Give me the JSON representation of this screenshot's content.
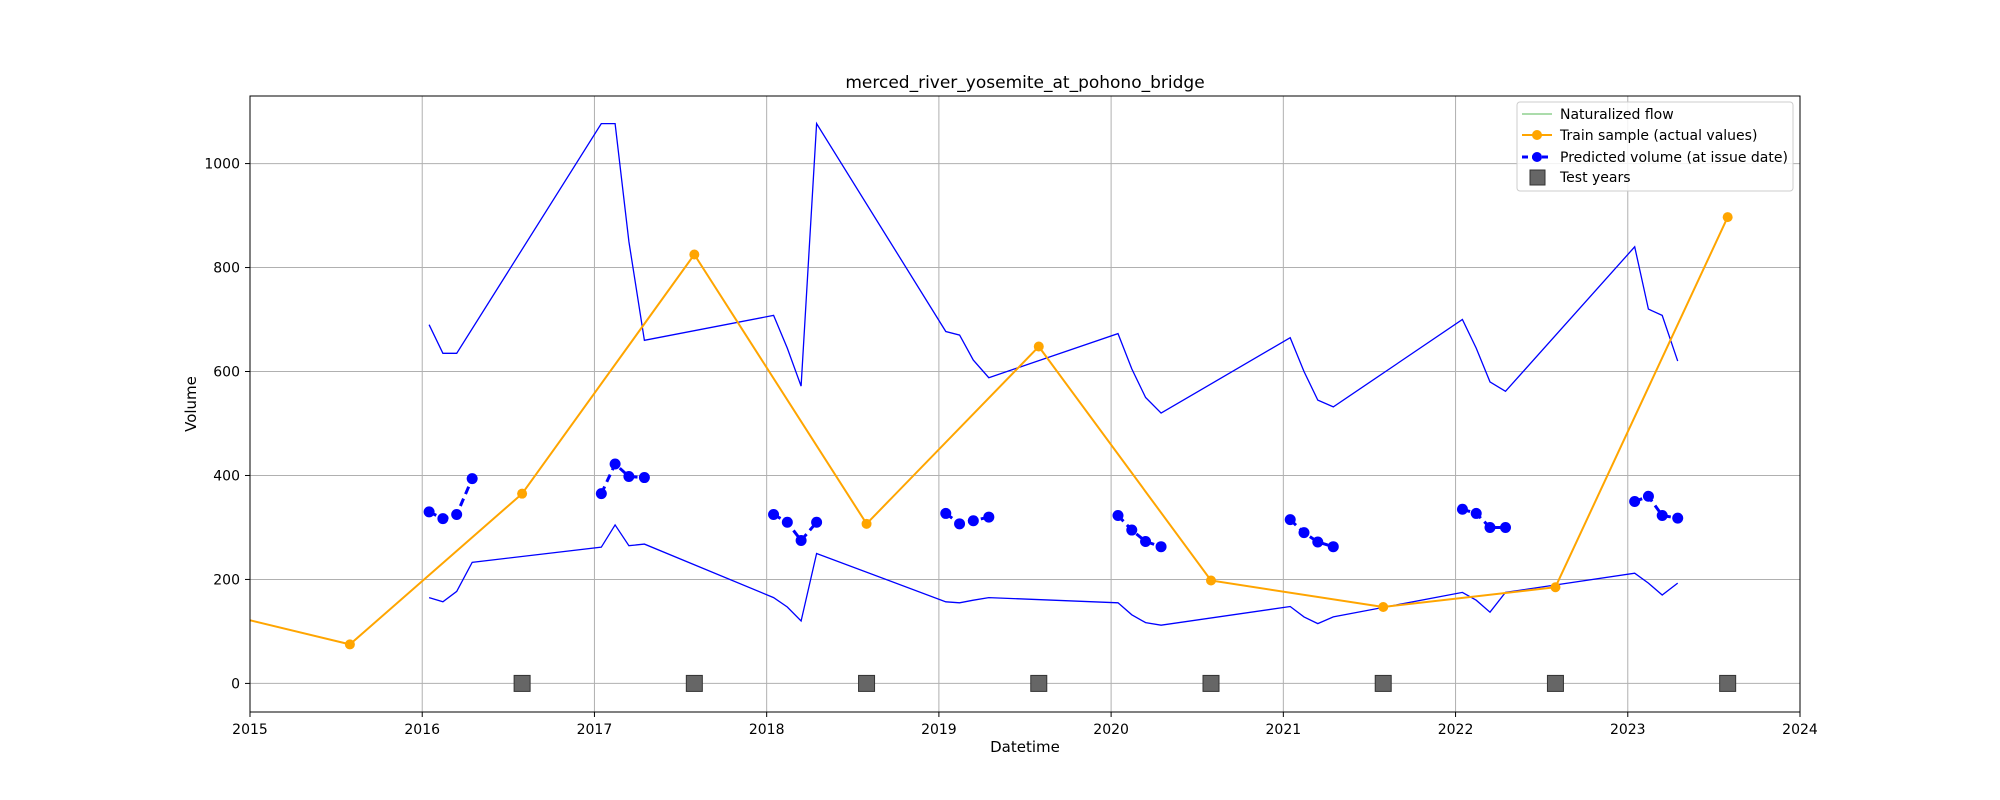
{
  "chart_data": {
    "type": "line",
    "title": "merced_river_yosemite_at_pohono_bridge",
    "xlabel": "Datetime",
    "ylabel": "Volume",
    "xlim": [
      2015,
      2024
    ],
    "ylim": [
      -55,
      1130
    ],
    "x_ticks": [
      2015,
      2016,
      2017,
      2018,
      2019,
      2020,
      2021,
      2022,
      2023,
      2024
    ],
    "y_ticks": [
      0,
      200,
      400,
      600,
      800,
      1000
    ],
    "grid": true,
    "legend_position": "top-right",
    "legend": [
      "Naturalized flow",
      "Train sample (actual values)",
      "Predicted volume (at issue date)",
      "Test years"
    ],
    "colors": {
      "naturalized": "#8fd18f",
      "train": "#ffa500",
      "predicted": "#0000ff",
      "test_years": "#666666"
    },
    "train_sample": {
      "x": [
        2014.58,
        2015.58,
        2016.58,
        2017.58,
        2018.58,
        2019.58,
        2020.58,
        2021.58,
        2022.58,
        2023.58
      ],
      "y": [
        155,
        75,
        365,
        825,
        307,
        648,
        198,
        147,
        185,
        897
      ]
    },
    "predicted_volume": {
      "segments": [
        {
          "x": [
            2016.04,
            2016.12,
            2016.2,
            2016.29
          ],
          "y": [
            330,
            317,
            325,
            394
          ]
        },
        {
          "x": [
            2017.04,
            2017.12,
            2017.2,
            2017.29
          ],
          "y": [
            365,
            422,
            398,
            396
          ]
        },
        {
          "x": [
            2018.04,
            2018.12,
            2018.2,
            2018.29
          ],
          "y": [
            325,
            310,
            275,
            310
          ]
        },
        {
          "x": [
            2019.04,
            2019.12,
            2019.2,
            2019.29
          ],
          "y": [
            327,
            307,
            313,
            320
          ]
        },
        {
          "x": [
            2020.04,
            2020.12,
            2020.2,
            2020.29
          ],
          "y": [
            323,
            295,
            273,
            263
          ]
        },
        {
          "x": [
            2021.04,
            2021.12,
            2021.2,
            2021.29
          ],
          "y": [
            315,
            290,
            272,
            263
          ]
        },
        {
          "x": [
            2022.04,
            2022.12,
            2022.2,
            2022.29
          ],
          "y": [
            335,
            327,
            300,
            300
          ]
        },
        {
          "x": [
            2023.04,
            2023.12,
            2023.2,
            2023.29
          ],
          "y": [
            350,
            360,
            323,
            318
          ]
        }
      ]
    },
    "upper_bound": {
      "x": [
        2016.04,
        2016.12,
        2016.2,
        2017.04,
        2017.12,
        2017.2,
        2017.29,
        2018.04,
        2018.12,
        2018.2,
        2018.29,
        2019.04,
        2019.12,
        2019.2,
        2019.29,
        2020.04,
        2020.12,
        2020.2,
        2020.29,
        2021.04,
        2021.12,
        2021.2,
        2021.29,
        2022.04,
        2022.12,
        2022.2,
        2022.29,
        2023.04,
        2023.12,
        2023.2,
        2023.29
      ],
      "y": [
        690,
        635,
        635,
        1077,
        1077,
        850,
        660,
        708,
        645,
        572,
        1077,
        677,
        670,
        622,
        588,
        673,
        605,
        550,
        520,
        665,
        600,
        545,
        532,
        700,
        645,
        580,
        562,
        840,
        720,
        708,
        620
      ]
    },
    "lower_bound": {
      "x": [
        2016.04,
        2016.12,
        2016.2,
        2016.29,
        2017.04,
        2017.12,
        2017.2,
        2017.29,
        2018.04,
        2018.12,
        2018.2,
        2018.29,
        2019.04,
        2019.12,
        2019.2,
        2019.29,
        2020.04,
        2020.12,
        2020.2,
        2020.29,
        2021.04,
        2021.12,
        2021.2,
        2021.29,
        2022.04,
        2022.12,
        2022.2,
        2022.29,
        2023.04,
        2023.12,
        2023.2,
        2023.29
      ],
      "y": [
        165,
        157,
        177,
        233,
        262,
        305,
        265,
        268,
        165,
        147,
        120,
        250,
        157,
        155,
        160,
        165,
        155,
        132,
        117,
        112,
        148,
        128,
        115,
        128,
        175,
        160,
        137,
        175,
        212,
        193,
        170,
        193
      ]
    },
    "test_years": {
      "x": [
        2016.58,
        2017.58,
        2018.58,
        2019.58,
        2020.58,
        2021.58,
        2022.58,
        2023.58
      ],
      "y": [
        0,
        0,
        0,
        0,
        0,
        0,
        0,
        0
      ]
    }
  }
}
